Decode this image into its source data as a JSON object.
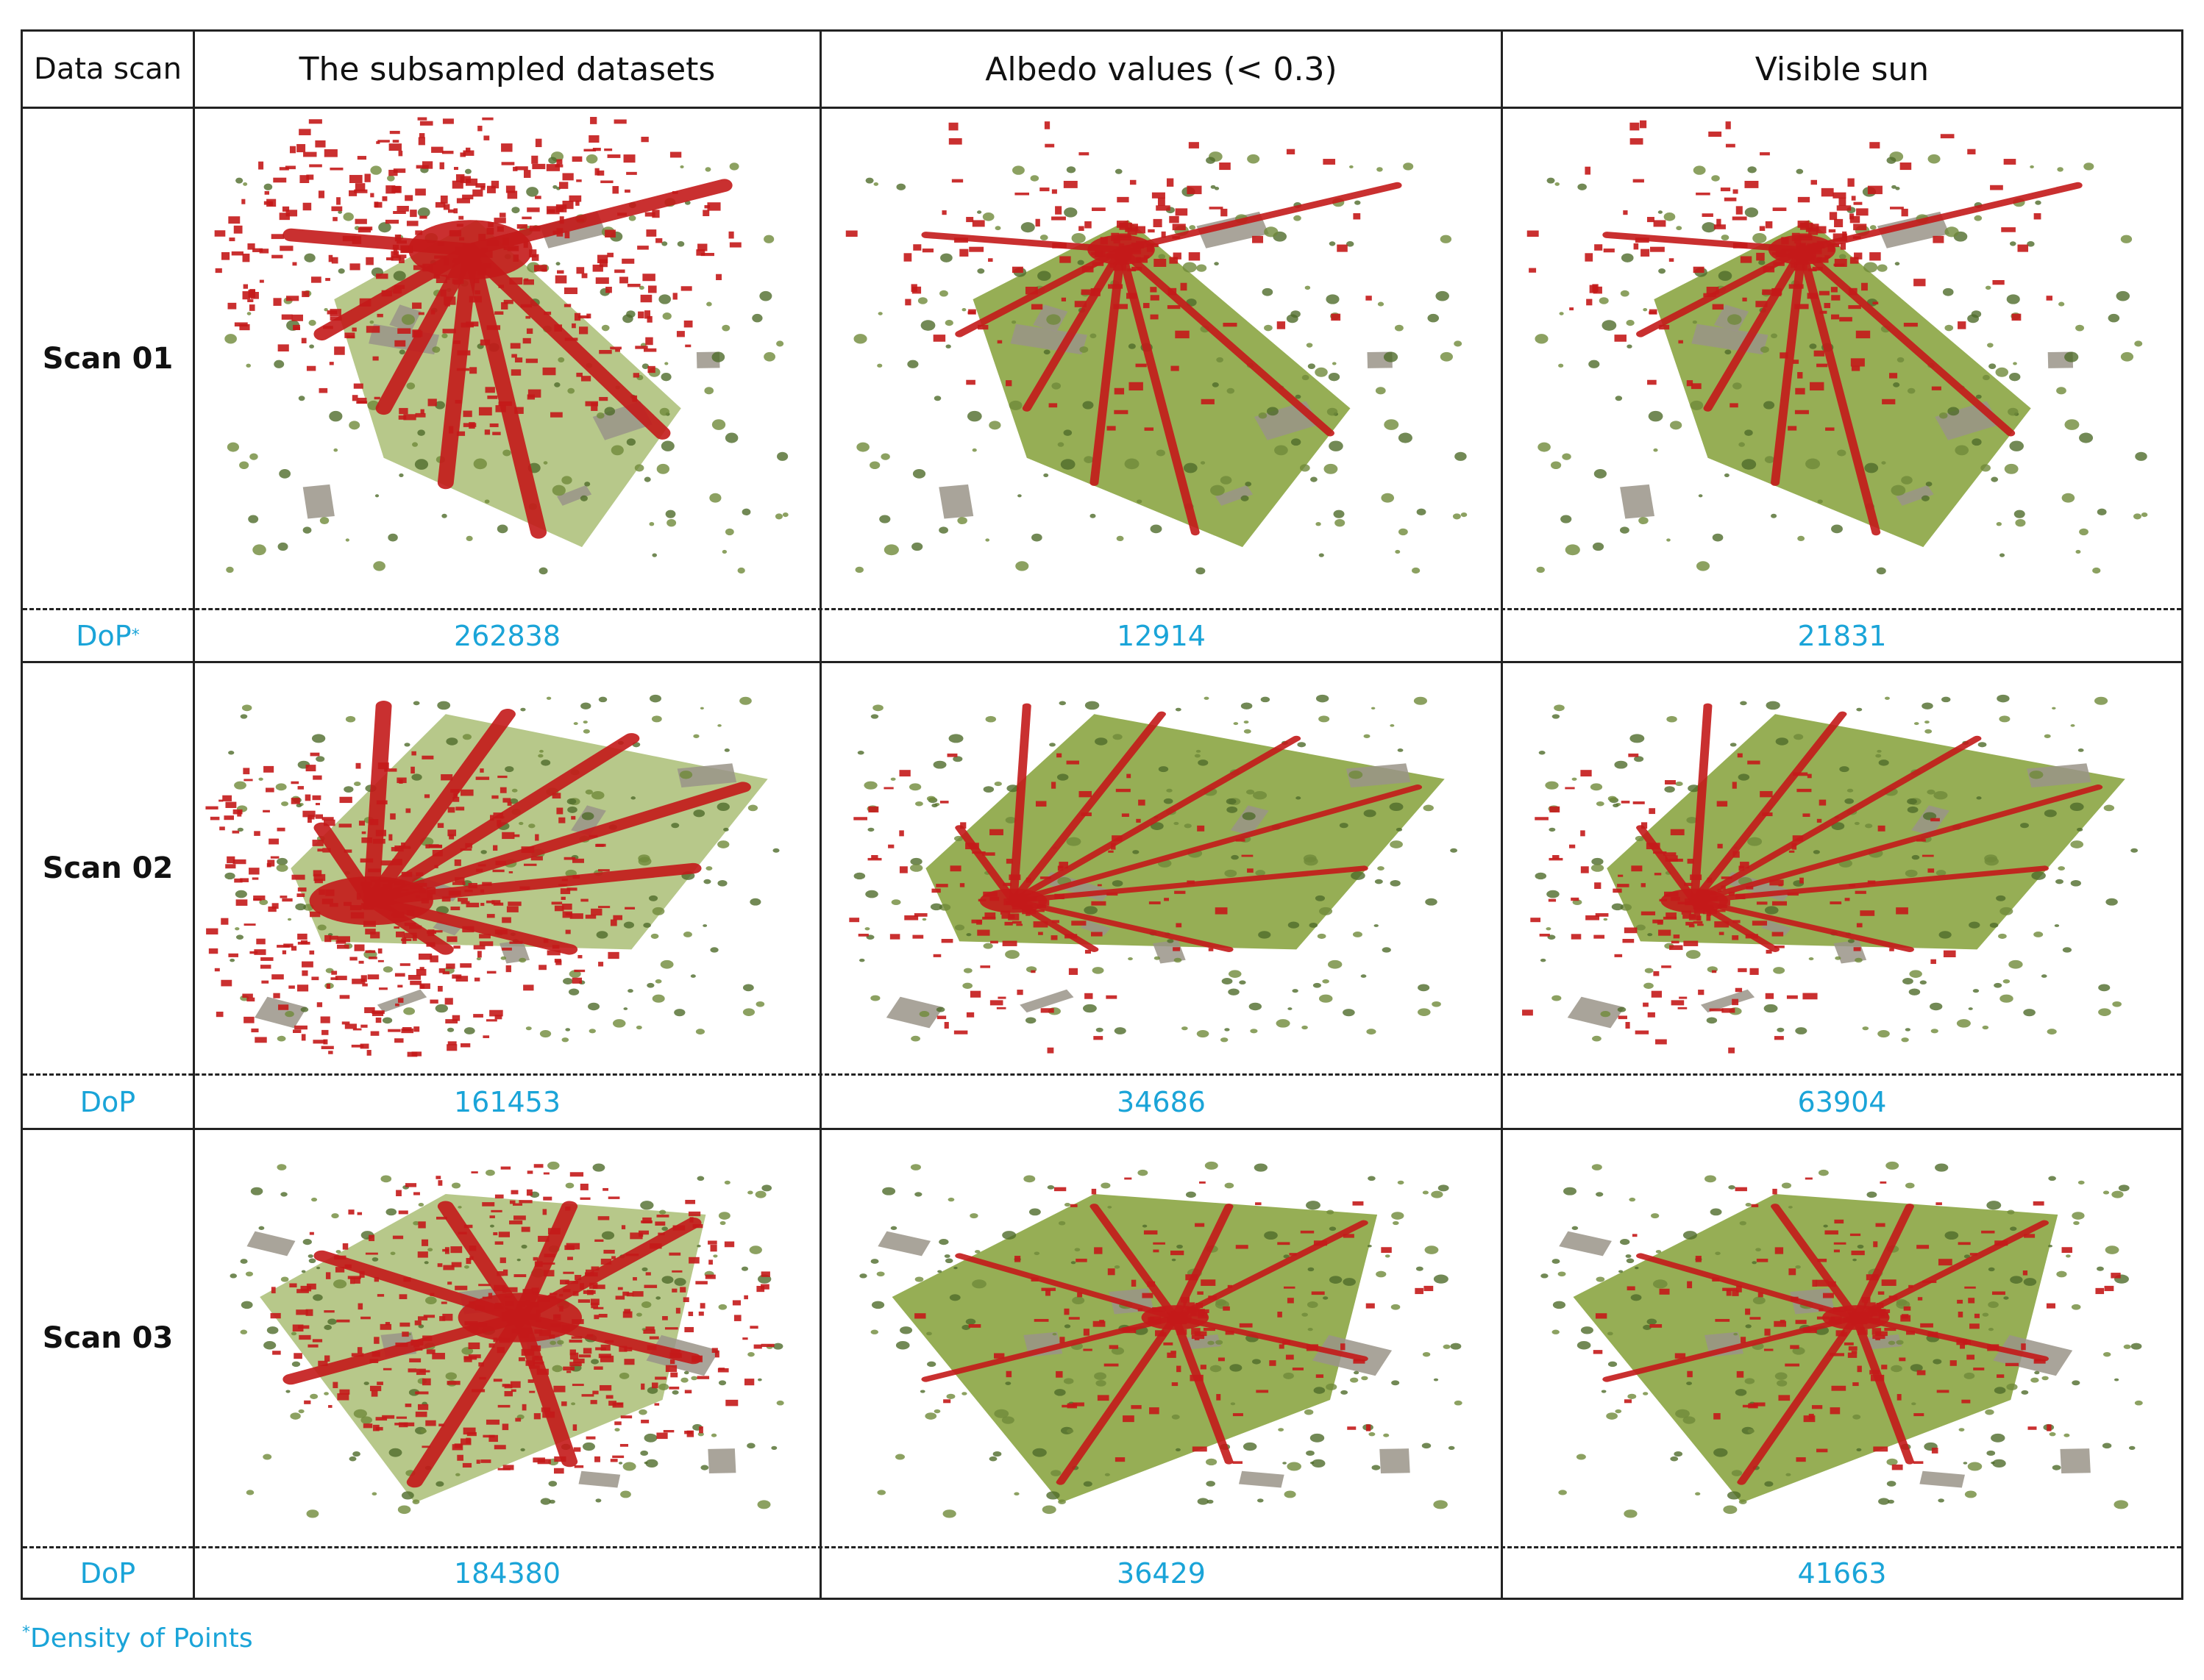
{
  "header": {
    "col0": "Data scan",
    "col1": "The subsampled datasets",
    "col2": "Albedo values (< 0.3)",
    "col3": "Visible sun"
  },
  "rows": [
    {
      "label": "Scan 01",
      "dop_label": "DoP",
      "dop_marker": "*",
      "dop": [
        "262838",
        "12914",
        "21831"
      ]
    },
    {
      "label": "Scan 02",
      "dop_label": "DoP",
      "dop": [
        "161453",
        "34686",
        "63904"
      ]
    },
    {
      "label": "Scan 03",
      "dop_label": "DoP",
      "dop": [
        "184380",
        "36429",
        "41663"
      ]
    }
  ],
  "footnote": {
    "marker": "*",
    "text": "Density of Points"
  },
  "colors": {
    "points_red": "#c41a1a",
    "grass_green": "#7c9a2a",
    "facade_gray": "#9a9488",
    "dop_blue": "#1aa4d8"
  }
}
